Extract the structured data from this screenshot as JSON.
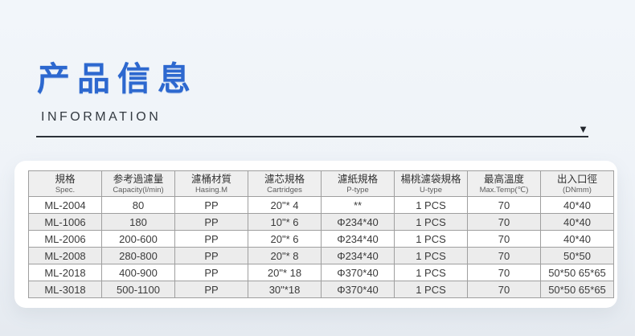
{
  "header": {
    "title_zh": "产品信息",
    "title_en": "INFORMATION"
  },
  "icons": {
    "dropdown_arrow": "▼"
  },
  "colors": {
    "accent_blue": "#2d68cf",
    "divider_dark": "#2c3138",
    "card_white": "#ffffff",
    "header_gray": "#efefef",
    "alt_row_gray": "#ececec",
    "border_gray": "#9f9f9f",
    "page_bg_top": "#f2f6fa",
    "page_bg_bottom": "#e5eaf0"
  },
  "table": {
    "columns": [
      {
        "zh": "規格",
        "en": "Spec."
      },
      {
        "zh": "参考過濾量",
        "en": "Capacity(l/min)"
      },
      {
        "zh": "濾桶材質",
        "en": "Hasing.M"
      },
      {
        "zh": "濾芯規格",
        "en": "Cartridges"
      },
      {
        "zh": "濾紙規格",
        "en": "P-type"
      },
      {
        "zh": "楊桃濾袋規格",
        "en": "U-type"
      },
      {
        "zh": "最高溫度",
        "en": "Max.Temp(℃)"
      },
      {
        "zh": "出入口徑",
        "en": "(DNmm)"
      }
    ],
    "rows": [
      [
        "ML-2004",
        "80",
        "PP",
        "20\"* 4",
        "**",
        "1 PCS",
        "70",
        "40*40"
      ],
      [
        "ML-1006",
        "180",
        "PP",
        "10\"* 6",
        "Φ234*40",
        "1 PCS",
        "70",
        "40*40"
      ],
      [
        "ML-2006",
        "200-600",
        "PP",
        "20\"* 6",
        "Φ234*40",
        "1 PCS",
        "70",
        "40*40"
      ],
      [
        "ML-2008",
        "280-800",
        "PP",
        "20\"* 8",
        "Φ234*40",
        "1 PCS",
        "70",
        "50*50"
      ],
      [
        "ML-2018",
        "400-900",
        "PP",
        "20\"* 18",
        "Φ370*40",
        "1 PCS",
        "70",
        "50*50 65*65"
      ],
      [
        "ML-3018",
        "500-1100",
        "PP",
        "30\"*18",
        "Φ370*40",
        "1 PCS",
        "70",
        "50*50 65*65"
      ]
    ]
  }
}
